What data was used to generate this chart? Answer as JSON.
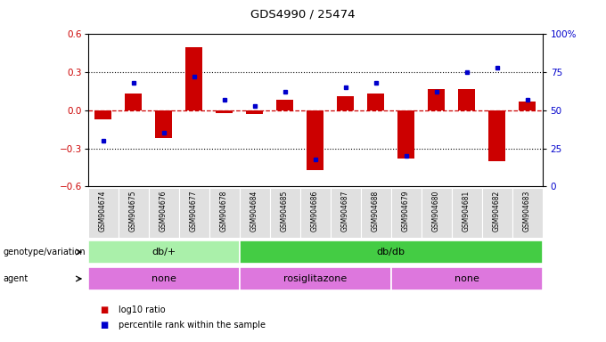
{
  "title": "GDS4990 / 25474",
  "samples": [
    "GSM904674",
    "GSM904675",
    "GSM904676",
    "GSM904677",
    "GSM904678",
    "GSM904684",
    "GSM904685",
    "GSM904686",
    "GSM904687",
    "GSM904688",
    "GSM904679",
    "GSM904680",
    "GSM904681",
    "GSM904682",
    "GSM904683"
  ],
  "log10_ratio": [
    -0.07,
    0.13,
    -0.22,
    0.5,
    -0.02,
    -0.03,
    0.08,
    -0.47,
    0.11,
    0.13,
    -0.38,
    0.17,
    0.17,
    -0.4,
    0.07
  ],
  "percentile_rank": [
    30,
    68,
    35,
    72,
    57,
    53,
    62,
    18,
    65,
    68,
    20,
    62,
    75,
    78,
    57
  ],
  "genotype_groups": [
    {
      "label": "db/+",
      "start": 0,
      "end": 5,
      "color": "#90ee90"
    },
    {
      "label": "db/db",
      "start": 5,
      "end": 15,
      "color": "#3dbb3d"
    }
  ],
  "agent_groups": [
    {
      "label": "none",
      "start": 0,
      "end": 5
    },
    {
      "label": "rosiglitazone",
      "start": 5,
      "end": 10
    },
    {
      "label": "none",
      "start": 10,
      "end": 15
    }
  ],
  "agent_color": "#dd77dd",
  "bar_color": "#cc0000",
  "dot_color": "#0000cc",
  "zero_line_color": "#cc0000",
  "ylim_left": [
    -0.6,
    0.6
  ],
  "ylim_right": [
    0,
    100
  ],
  "yticks_left": [
    -0.6,
    -0.3,
    0.0,
    0.3,
    0.6
  ],
  "yticks_right": [
    0,
    25,
    50,
    75,
    100
  ],
  "hgrid_values": [
    -0.3,
    0.3
  ],
  "legend_items": [
    {
      "label": "log10 ratio",
      "color": "#cc0000"
    },
    {
      "label": "percentile rank within the sample",
      "color": "#0000cc"
    }
  ],
  "background_color": "#ffffff"
}
